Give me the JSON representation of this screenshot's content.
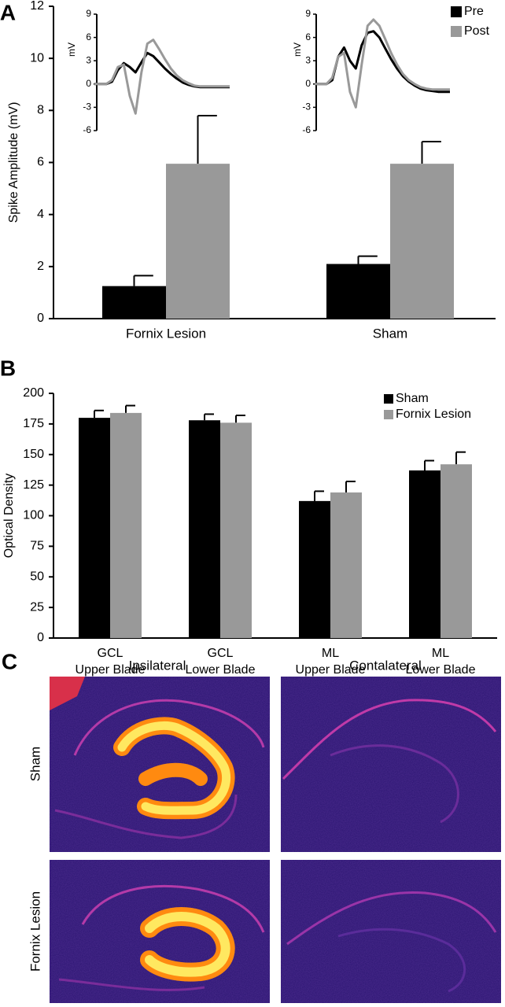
{
  "chart_data": [
    {
      "type": "bar",
      "panel": "A",
      "ylabel": "Spike Amplitude (mV)",
      "categories": [
        "Fornix Lesion",
        "Sham"
      ],
      "series": [
        {
          "name": "Pre",
          "color": "#000000",
          "values": [
            1.25,
            2.1
          ],
          "errors": [
            0.4,
            0.3
          ]
        },
        {
          "name": "Post",
          "color": "#999999",
          "values": [
            5.95,
            5.95
          ],
          "errors": [
            1.85,
            0.85
          ]
        }
      ],
      "ylim": [
        0,
        12
      ],
      "yticks": [
        0,
        2,
        4,
        6,
        8,
        10,
        12
      ],
      "legend": "top-right"
    },
    {
      "type": "line",
      "ylabel": "mV",
      "ylim": [
        -6,
        9
      ],
      "yticks": [
        -6,
        -3,
        0,
        3,
        6,
        9
      ],
      "series": [
        {
          "color": "#000000",
          "values": [
            0,
            0,
            0,
            0.3,
            1.8,
            2.7,
            2.2,
            1.5,
            2.8,
            4,
            3.6,
            2.8,
            2,
            1.3,
            0.7,
            0.2,
            -0.1,
            -0.3,
            -0.4,
            -0.4,
            -0.4,
            -0.4,
            -0.4,
            -0.4
          ]
        },
        {
          "color": "#999999",
          "values": [
            0,
            0,
            0,
            0.5,
            2.2,
            2.5,
            -1.5,
            -3.8,
            1.5,
            5.2,
            5.7,
            4.5,
            3.2,
            2,
            1.1,
            0.5,
            0.1,
            -0.2,
            -0.3,
            -0.3,
            -0.3,
            -0.3,
            -0.3,
            -0.3
          ]
        }
      ]
    },
    {
      "type": "line",
      "ylabel": "mV",
      "ylim": [
        -6,
        9
      ],
      "yticks": [
        -6,
        -3,
        0,
        3,
        6,
        9
      ],
      "series": [
        {
          "color": "#000000",
          "values": [
            0,
            0,
            0,
            0.5,
            3.5,
            4.7,
            3,
            2,
            5,
            6.6,
            6.8,
            6,
            4.6,
            3.2,
            2,
            1,
            0.3,
            -0.2,
            -0.6,
            -0.8,
            -0.9,
            -1,
            -1,
            -1
          ]
        },
        {
          "color": "#999999",
          "values": [
            0,
            0,
            0,
            0.8,
            3.5,
            4,
            -1,
            -3,
            2.5,
            7.5,
            8.3,
            7.5,
            5.8,
            4,
            2.5,
            1.3,
            0.5,
            0,
            -0.4,
            -0.6,
            -0.7,
            -0.7,
            -0.7,
            -0.7
          ]
        }
      ]
    },
    {
      "type": "bar",
      "panel": "B",
      "ylabel": "Optical Density",
      "categories": [
        [
          "GCL",
          "Upper Blade"
        ],
        [
          "GCL",
          "Lower Blade"
        ],
        [
          "ML",
          "Upper Blade"
        ],
        [
          "ML",
          "Lower Blade"
        ]
      ],
      "series": [
        {
          "name": "Sham",
          "color": "#000000",
          "values": [
            180,
            178,
            112,
            137
          ],
          "errors": [
            6,
            5,
            8,
            8
          ]
        },
        {
          "name": "Fornix Lesion",
          "color": "#999999",
          "values": [
            184,
            176,
            119,
            142
          ],
          "errors": [
            6,
            6,
            9,
            10
          ]
        }
      ],
      "ylim": [
        0,
        200
      ],
      "yticks": [
        0,
        25,
        50,
        75,
        100,
        125,
        150,
        175,
        200
      ],
      "legend": "top-right"
    }
  ],
  "panel_c": {
    "panel": "C",
    "columns": [
      "Ipsilateral",
      "Contalateral"
    ],
    "rows": [
      "Sham",
      "Fornix Lesion"
    ]
  }
}
